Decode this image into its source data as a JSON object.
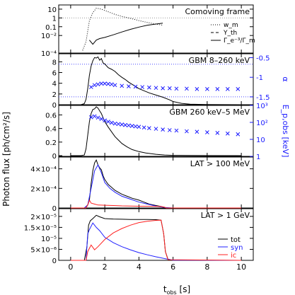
{
  "figure": {
    "ylabel_main": "Photon flux [ph/cm²/s]",
    "xlabel_main": "t",
    "xlabel_sub": "obs",
    "xlabel_unit": " [s]",
    "xticks": [
      0,
      2,
      4,
      6,
      8,
      10
    ],
    "xlim": [
      -0.7,
      10.7
    ]
  },
  "chart_data": [
    {
      "id": "comoving",
      "type": "line",
      "title": "Comoving frame",
      "yscale": "log",
      "ylim": [
        0.0001,
        30
      ],
      "yticks": [
        10,
        1,
        0.1,
        0.01,
        0.0001
      ],
      "ytick_labels": [
        "10",
        "1",
        "0.1",
        "10⁻²",
        "10⁻⁴"
      ],
      "reference_lines": [
        1
      ],
      "legend": [
        "w_m",
        "Y_th",
        "Γ_e⁻³/Γ_m"
      ],
      "legend_position": "right",
      "series": [
        {
          "name": "w_m",
          "style": "dotted",
          "x": [
            0.7,
            0.9,
            1.1,
            1.3,
            1.5,
            1.8,
            2.2,
            2.6,
            3.0,
            3.5,
            4.0,
            4.5,
            5.0,
            5.4
          ],
          "y": [
            0.0002,
            0.002,
            0.5,
            4,
            13,
            10,
            5,
            2.5,
            1.5,
            0.9,
            0.5,
            0.3,
            0.2,
            0.15
          ]
        },
        {
          "name": "Y_th",
          "style": "dashed",
          "x": [
            0.7,
            1.2,
            1.6,
            2.0,
            2.5,
            3.0,
            4.0,
            5.0,
            5.4
          ],
          "y": [
            30,
            30,
            30,
            30,
            30,
            30,
            30,
            30,
            30
          ]
        },
        {
          "name": "Γ_e⁻³/Γ_m",
          "style": "solid",
          "x": [
            1.1,
            1.3,
            1.5,
            1.7,
            2.0,
            2.5,
            3.0,
            3.5,
            4.0,
            4.5,
            5.0,
            5.4
          ],
          "y": [
            0.003,
            0.001,
            0.003,
            0.0045,
            0.006,
            0.012,
            0.025,
            0.05,
            0.09,
            0.15,
            0.2,
            0.25
          ]
        }
      ]
    },
    {
      "id": "gbm1",
      "type": "line",
      "title": "GBM 8–260 keV",
      "ylim": [
        0,
        9.5
      ],
      "yticks": [
        0,
        2,
        4,
        6,
        8
      ],
      "right_axis_label": "α",
      "right_ylim": [
        -1.7,
        -0.4
      ],
      "right_yticks": [
        -0.5,
        -1,
        -1.5
      ],
      "reference_lines_right": [
        -0.666,
        -1.5
      ],
      "series": [
        {
          "name": "flux",
          "style": "solid",
          "color": "#000000",
          "x": [
            0.0,
            0.6,
            0.8,
            0.9,
            1.0,
            1.1,
            1.2,
            1.3,
            1.4,
            1.5,
            1.6,
            1.7,
            1.8,
            1.9,
            2.0,
            2.2,
            2.4,
            2.6,
            2.8,
            3.0,
            3.2,
            3.4,
            3.6,
            3.8,
            4.0,
            4.3,
            4.6,
            5.0,
            5.4,
            5.8,
            6.0,
            6.5,
            7.0,
            8.0,
            9.0,
            10.0
          ],
          "y": [
            0,
            0,
            0.2,
            1.0,
            3.0,
            5.5,
            7.2,
            8.2,
            8.8,
            8.7,
            8.9,
            8.3,
            8.6,
            7.8,
            7.6,
            6.9,
            6.6,
            6.2,
            5.6,
            5.1,
            4.7,
            4.2,
            3.8,
            3.4,
            3.0,
            2.6,
            2.2,
            1.8,
            1.4,
            0.9,
            0.6,
            0.25,
            0.1,
            0.02,
            0.01,
            0.0
          ]
        },
        {
          "name": "α",
          "style": "markers-x",
          "color": "#1a1aff",
          "x": [
            1.2,
            1.4,
            1.6,
            1.8,
            2.0,
            2.2,
            2.4,
            2.6,
            3.0,
            3.4,
            3.8,
            4.2,
            4.6,
            5.0,
            5.4,
            5.8,
            6.2,
            6.8,
            7.4,
            8.0,
            8.6,
            9.2,
            9.8
          ],
          "y": [
            -1.25,
            -1.2,
            -1.18,
            -1.16,
            -1.16,
            -1.17,
            -1.18,
            -1.2,
            -1.22,
            -1.23,
            -1.24,
            -1.25,
            -1.26,
            -1.27,
            -1.28,
            -1.28,
            -1.29,
            -1.29,
            -1.3,
            -1.3,
            -1.3,
            -1.3,
            -1.3
          ]
        }
      ]
    },
    {
      "id": "gbm2",
      "type": "line",
      "title": "GBM 260 keV–5 MeV",
      "ylim": [
        -0.01,
        0.74
      ],
      "yticks": [
        0,
        0.2,
        0.4,
        0.6
      ],
      "ytick_labels": [
        "0",
        "0.2",
        "0.4",
        "0.6"
      ],
      "right_axis_label": "E_p,obs [keV]",
      "right_yscale": "log",
      "right_ylim": [
        1,
        1000
      ],
      "right_yticks": [
        1,
        10,
        100,
        1000
      ],
      "right_ytick_labels": [
        "1",
        "10",
        "10²",
        "10³"
      ],
      "series": [
        {
          "name": "flux",
          "style": "solid",
          "color": "#000000",
          "x": [
            0.0,
            0.6,
            0.8,
            0.9,
            1.0,
            1.1,
            1.2,
            1.3,
            1.4,
            1.5,
            1.6,
            1.7,
            1.8,
            1.9,
            2.0,
            2.2,
            2.4,
            2.6,
            2.8,
            3.0,
            3.3,
            3.6,
            4.0,
            4.4,
            5.0,
            5.5,
            6.0,
            7.0,
            8.0,
            10.0
          ],
          "y": [
            0,
            0,
            0.01,
            0.1,
            0.3,
            0.5,
            0.62,
            0.68,
            0.69,
            0.72,
            0.7,
            0.66,
            0.62,
            0.56,
            0.5,
            0.42,
            0.35,
            0.28,
            0.23,
            0.18,
            0.13,
            0.09,
            0.06,
            0.04,
            0.02,
            0.01,
            0.005,
            0.002,
            0.001,
            0.0
          ]
        },
        {
          "name": "E_p,obs",
          "style": "markers-x",
          "color": "#1a1aff",
          "x": [
            1.2,
            1.4,
            1.6,
            1.8,
            2.0,
            2.2,
            2.4,
            2.6,
            2.8,
            3.0,
            3.2,
            3.4,
            3.6,
            3.8,
            4.0,
            4.3,
            4.6,
            5.0,
            5.4,
            5.8,
            6.2,
            6.8,
            7.4,
            8.0,
            8.6,
            9.2,
            9.8
          ],
          "y": [
            200,
            230,
            190,
            160,
            130,
            110,
            95,
            85,
            80,
            75,
            70,
            66,
            62,
            58,
            55,
            50,
            46,
            42,
            38,
            35,
            33,
            30,
            28,
            26,
            24,
            22,
            20
          ]
        }
      ]
    },
    {
      "id": "lat100",
      "type": "line",
      "title": "LAT > 100 MeV",
      "ylim": [
        0,
        0.00052
      ],
      "yticks": [
        0,
        0.0002,
        0.0004
      ],
      "ytick_labels": [
        "0",
        "2×10⁻⁴",
        "4×10⁻⁴"
      ],
      "series": [
        {
          "name": "tot",
          "style": "solid",
          "color": "#000000",
          "x": [
            0.0,
            0.8,
            1.0,
            1.1,
            1.2,
            1.3,
            1.4,
            1.5,
            1.6,
            1.7,
            1.8,
            1.9,
            2.0,
            2.2,
            2.4,
            2.6,
            2.8,
            3.0,
            3.3,
            3.6,
            4.0,
            4.3,
            4.6,
            5.0,
            5.3,
            5.5,
            5.6,
            6.0,
            10.0
          ],
          "y": [
            0,
            0,
            3e-05,
            8e-05,
            0.00025,
            0.00038,
            0.00046,
            0.00049,
            0.00044,
            0.00041,
            0.00039,
            0.00033,
            0.00029,
            0.00024,
            0.00021,
            0.00018,
            0.00016,
            0.00014,
            0.00012,
            0.0001,
            8e-05,
            6e-05,
            4e-05,
            2.5e-05,
            1.5e-05,
            5e-06,
            0,
            0,
            0
          ]
        },
        {
          "name": "syn",
          "style": "solid",
          "color": "#2020ff",
          "x": [
            0.0,
            0.8,
            1.0,
            1.2,
            1.4,
            1.6,
            1.8,
            2.0,
            2.3,
            2.6,
            3.0,
            3.5,
            4.0,
            4.5,
            5.0,
            5.5,
            6.0,
            10.0
          ],
          "y": [
            0,
            0,
            3e-05,
            0.0002,
            0.00038,
            0.00044,
            0.00036,
            0.00026,
            0.0002,
            0.00016,
            0.00012,
            9e-05,
            6e-05,
            4e-05,
            2e-05,
            5e-06,
            0,
            0
          ]
        },
        {
          "name": "ic",
          "style": "solid",
          "color": "#ff2020",
          "x": [
            0.0,
            0.9,
            1.0,
            1.1,
            1.2,
            1.4,
            1.6,
            2.0,
            2.5,
            3.0,
            3.5,
            4.0,
            4.5,
            5.0,
            5.3,
            5.5,
            5.6,
            10.0
          ],
          "y": [
            0,
            0,
            3e-05,
            8e-05,
            5e-05,
            4e-05,
            3e-05,
            2.8e-05,
            2.5e-05,
            2.2e-05,
            2e-05,
            1.8e-05,
            1.7e-05,
            1.6e-05,
            1.5e-05,
            8e-06,
            0,
            0
          ]
        }
      ]
    },
    {
      "id": "lat1",
      "type": "line",
      "title": "LAT > 1 GeV",
      "ylim": [
        0,
        2.35e-05
      ],
      "yticks": [
        0,
        5e-06,
        1e-05,
        1.5e-05,
        2e-05
      ],
      "ytick_labels": [
        "0",
        "5×10⁻⁶",
        "10⁻⁵",
        "1.5×10⁻⁵",
        "2×10⁻⁵"
      ],
      "legend": [
        "tot",
        "syn",
        "ic"
      ],
      "legend_position": "bottom-right",
      "series": [
        {
          "name": "tot",
          "style": "solid",
          "color": "#000000",
          "x": [
            0.0,
            0.8,
            0.95,
            1.05,
            1.15,
            1.3,
            1.5,
            1.7,
            2.0,
            2.5,
            3.0,
            3.5,
            4.0,
            4.5,
            5.0,
            5.3,
            5.45,
            5.55,
            5.7,
            6.0,
            10.0
          ],
          "y": [
            0,
            0,
            6e-06,
            1.6e-05,
            1.8e-05,
            1.9e-05,
            2.05e-05,
            1.98e-05,
            1.9e-05,
            1.88e-05,
            1.87e-05,
            1.86e-05,
            1.86e-05,
            1.86e-05,
            1.85e-05,
            1.83e-05,
            1.2e-05,
            4e-06,
            5e-07,
            0,
            0
          ]
        },
        {
          "name": "syn",
          "style": "solid",
          "color": "#2020ff",
          "x": [
            0.0,
            0.9,
            1.0,
            1.1,
            1.3,
            1.5,
            1.7,
            2.0,
            2.5,
            3.0,
            3.5,
            4.0,
            4.5,
            5.0,
            5.5,
            6.0,
            10.0
          ],
          "y": [
            0,
            0,
            1.2e-05,
            1.4e-05,
            1.7e-05,
            1.5e-05,
            1.35e-05,
            1.05e-05,
            8e-06,
            6.2e-06,
            4.8e-06,
            3.5e-06,
            2.5e-06,
            1.6e-06,
            8e-07,
            1e-07,
            0
          ]
        },
        {
          "name": "ic",
          "style": "solid",
          "color": "#ff2020",
          "x": [
            0.0,
            0.9,
            1.0,
            1.2,
            1.4,
            1.6,
            2.0,
            2.5,
            3.0,
            3.5,
            4.0,
            4.5,
            5.0,
            5.3,
            5.45,
            5.55,
            5.7,
            10.0
          ],
          "y": [
            0,
            0,
            4e-06,
            7e-06,
            4.8e-06,
            6.2e-06,
            9.5e-06,
            1.25e-05,
            1.45e-05,
            1.6e-05,
            1.72e-05,
            1.78e-05,
            1.82e-05,
            1.83e-05,
            1.2e-05,
            4e-06,
            3e-07,
            0
          ]
        }
      ]
    }
  ]
}
